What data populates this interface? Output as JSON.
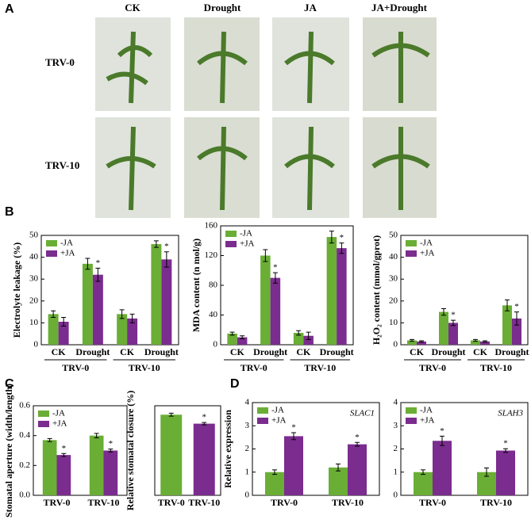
{
  "panel_labels": [
    "A",
    "B",
    "C",
    "D"
  ],
  "photo_panel": {
    "columns": [
      "CK",
      "Drought",
      "JA",
      "JA+Drought"
    ],
    "rows": [
      "TRV-0",
      "TRV-10"
    ]
  },
  "chart_data": [
    {
      "type": "bar",
      "y_label": "Electrolyte leakage (%)",
      "categories": [
        "CK",
        "Drought",
        "CK",
        "Drought"
      ],
      "groups": [
        "TRV-0",
        "TRV-10"
      ],
      "series": [
        {
          "name": "-JA",
          "color": "#6aae35",
          "values": [
            14,
            37,
            14,
            46
          ],
          "errors": [
            1.5,
            2.5,
            2,
            1.5
          ],
          "significance": [
            null,
            null,
            null,
            null
          ]
        },
        {
          "name": "+JA",
          "color": "#7b2c8f",
          "values": [
            10.5,
            32,
            12,
            39
          ],
          "errors": [
            2,
            3,
            2,
            3.5
          ],
          "significance": [
            null,
            "*",
            null,
            "*"
          ]
        }
      ],
      "ylim": [
        0,
        50
      ],
      "yticks": [
        0,
        10,
        20,
        30,
        40,
        50
      ],
      "legend": "upper left"
    },
    {
      "type": "bar",
      "y_label": "MDA content (n mol/g)",
      "categories": [
        "CK",
        "Drought",
        "CK",
        "Drought"
      ],
      "groups": [
        "TRV-0",
        "TRV-10"
      ],
      "series": [
        {
          "name": "-JA",
          "color": "#6aae35",
          "values": [
            15,
            120,
            16,
            145
          ],
          "errors": [
            2,
            8,
            3,
            8
          ],
          "significance": [
            null,
            null,
            null,
            null
          ]
        },
        {
          "name": "+JA",
          "color": "#7b2c8f",
          "values": [
            10,
            90,
            12,
            130
          ],
          "errors": [
            2,
            7,
            5,
            7
          ],
          "significance": [
            null,
            "*",
            null,
            "*"
          ]
        }
      ],
      "ylim": [
        0,
        160
      ],
      "yticks": [
        0,
        40,
        80,
        120,
        160
      ],
      "legend": "upper left"
    },
    {
      "type": "bar",
      "y_label": "H₂O₂ content (mmol/gprot)",
      "categories": [
        "CK",
        "Drought",
        "CK",
        "Drought"
      ],
      "groups": [
        "TRV-0",
        "TRV-10"
      ],
      "series": [
        {
          "name": "-JA",
          "color": "#6aae35",
          "values": [
            2,
            15,
            2,
            18
          ],
          "errors": [
            0.4,
            1.5,
            0.4,
            2.5
          ],
          "significance": [
            null,
            null,
            null,
            null
          ]
        },
        {
          "name": "+JA",
          "color": "#7b2c8f",
          "values": [
            1.5,
            10,
            1.5,
            12
          ],
          "errors": [
            0.3,
            1.2,
            0.3,
            3
          ],
          "significance": [
            null,
            "*",
            null,
            "*"
          ]
        }
      ],
      "ylim": [
        0,
        50
      ],
      "yticks": [
        0,
        10,
        20,
        30,
        40,
        50
      ],
      "legend": "upper left"
    },
    {
      "type": "bar",
      "y_label": "Stomatal aperture (width/length)",
      "categories": [
        "TRV-0",
        "TRV-10"
      ],
      "series": [
        {
          "name": "-JA",
          "color": "#6aae35",
          "values": [
            0.37,
            0.4
          ],
          "errors": [
            0.01,
            0.015
          ],
          "significance": [
            null,
            null
          ]
        },
        {
          "name": "+JA",
          "color": "#7b2c8f",
          "values": [
            0.27,
            0.3
          ],
          "errors": [
            0.01,
            0.01
          ],
          "significance": [
            "*",
            "*"
          ]
        }
      ],
      "ylim": [
        0,
        0.6
      ],
      "yticks": [
        {
          "value": 0,
          "label": "0.0"
        },
        0.2,
        0.4,
        0.6
      ],
      "legend": "upper left"
    },
    {
      "type": "bar",
      "y_label": "Relative stomatal closure (%)",
      "categories": [
        "TRV-0",
        "TRV-10"
      ],
      "series": [
        {
          "colors": [
            "#6aae35",
            "#7b2c8f"
          ],
          "values": [
            27,
            24
          ],
          "errors": [
            0.5,
            0.4
          ],
          "significance": [
            null,
            "*"
          ]
        }
      ],
      "ylim": [
        0,
        30
      ]
    },
    {
      "type": "bar",
      "title": "SLAC1",
      "y_label": "Relative expression",
      "categories": [
        "TRV-0",
        "TRV-10"
      ],
      "series": [
        {
          "name": "-JA",
          "color": "#6aae35",
          "values": [
            1,
            1.2
          ],
          "errors": [
            0.1,
            0.15
          ],
          "significance": [
            null,
            null
          ]
        },
        {
          "name": "+JA",
          "color": "#7b2c8f",
          "values": [
            2.55,
            2.2
          ],
          "errors": [
            0.15,
            0.08
          ],
          "significance": [
            "*",
            "*"
          ]
        }
      ],
      "ylim": [
        0,
        4
      ],
      "yticks": [
        0,
        1,
        2,
        3,
        4
      ],
      "legend": "upper left"
    },
    {
      "type": "bar",
      "title": "SLAH3",
      "categories": [
        "TRV-0",
        "TRV-10"
      ],
      "series": [
        {
          "name": "-JA",
          "color": "#6aae35",
          "values": [
            1,
            1
          ],
          "errors": [
            0.1,
            0.18
          ],
          "significance": [
            null,
            null
          ]
        },
        {
          "name": "+JA",
          "color": "#7b2c8f",
          "values": [
            2.35,
            1.93
          ],
          "errors": [
            0.2,
            0.08
          ],
          "significance": [
            "*",
            "*"
          ]
        }
      ],
      "ylim": [
        0,
        4
      ],
      "yticks": [
        0,
        1,
        2,
        3,
        4
      ],
      "legend": "upper left"
    }
  ]
}
